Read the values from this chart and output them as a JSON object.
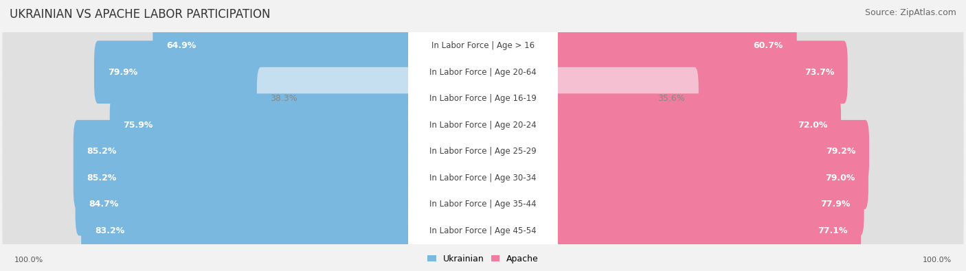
{
  "title": "UKRAINIAN VS APACHE LABOR PARTICIPATION",
  "source": "Source: ZipAtlas.com",
  "categories": [
    "In Labor Force | Age > 16",
    "In Labor Force | Age 20-64",
    "In Labor Force | Age 16-19",
    "In Labor Force | Age 20-24",
    "In Labor Force | Age 25-29",
    "In Labor Force | Age 30-34",
    "In Labor Force | Age 35-44",
    "In Labor Force | Age 45-54"
  ],
  "ukrainian_values": [
    64.9,
    79.9,
    38.3,
    75.9,
    85.2,
    85.2,
    84.7,
    83.2
  ],
  "apache_values": [
    60.7,
    73.7,
    35.6,
    72.0,
    79.2,
    79.0,
    77.9,
    77.1
  ],
  "ukrainian_color_strong": "#7ab8e0",
  "ukrainian_color_light": "#c5dff0",
  "apache_color_strong": "#f07ca0",
  "apache_color_light": "#f5c0d2",
  "background_color": "#f2f2f2",
  "row_bg_even": "#e8e8e8",
  "row_bg_odd": "#dedede",
  "label_bg_color": "#ffffff",
  "title_fontsize": 12,
  "source_fontsize": 9,
  "bar_label_fontsize": 9,
  "category_fontsize": 8.5,
  "legend_fontsize": 9,
  "axis_label_fontsize": 8,
  "max_value": 100.0,
  "bar_height": 0.78,
  "light_rows": [
    2
  ]
}
